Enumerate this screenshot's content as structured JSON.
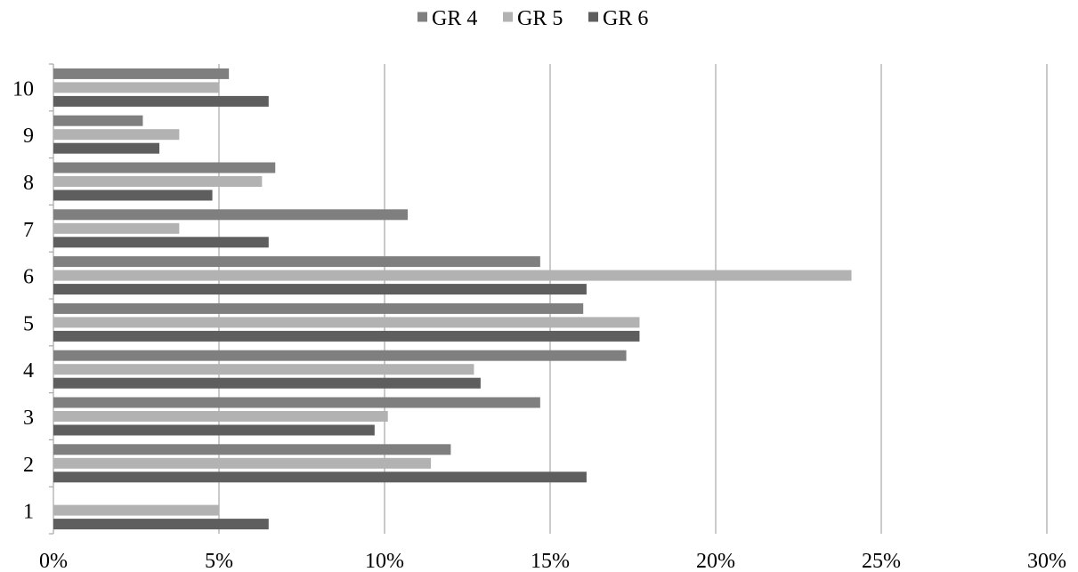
{
  "chart_data": {
    "type": "bar",
    "orientation": "horizontal",
    "categories": [
      "1",
      "2",
      "3",
      "4",
      "5",
      "6",
      "7",
      "8",
      "9",
      "10"
    ],
    "series": [
      {
        "name": "GR 4",
        "color": "#7f7f7f",
        "values": [
          0,
          12.0,
          14.7,
          17.3,
          16.0,
          14.7,
          10.7,
          6.7,
          2.7,
          5.3
        ]
      },
      {
        "name": "GR 5",
        "color": "#b2b2b2",
        "values": [
          5.0,
          11.4,
          10.1,
          12.7,
          17.7,
          24.1,
          3.8,
          6.3,
          3.8,
          5.0
        ]
      },
      {
        "name": "GR 6",
        "color": "#5e5e5e",
        "values": [
          6.5,
          16.1,
          9.7,
          12.9,
          17.7,
          16.1,
          6.5,
          4.8,
          3.2,
          6.5
        ]
      }
    ],
    "xaxis": {
      "min": 0,
      "max": 30,
      "ticks": [
        0,
        5,
        10,
        15,
        20,
        25,
        30
      ],
      "tick_labels": [
        "0%",
        "5%",
        "10%",
        "15%",
        "20%",
        "25%",
        "30%"
      ]
    },
    "grid": true,
    "legend": "top-center",
    "title": "",
    "xlabel": "",
    "ylabel": ""
  }
}
